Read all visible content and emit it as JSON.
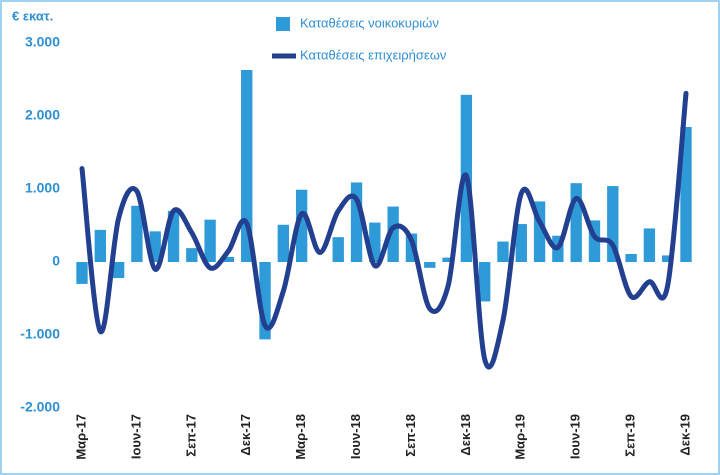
{
  "chart_data": {
    "type": "bar-line",
    "y_label": "€ εκατ.",
    "categories": [
      "Μαρ-17",
      null,
      null,
      "Ιουν-17",
      null,
      null,
      "Σεπ-17",
      null,
      null,
      "Δεκ-17",
      null,
      null,
      "Μαρ-18",
      null,
      null,
      "Ιουν-18",
      null,
      null,
      "Σεπ-18",
      null,
      null,
      "Δεκ-18",
      null,
      null,
      "Μαρ-19",
      null,
      null,
      "Ιουν-19",
      null,
      null,
      "Σεπ-19",
      null,
      null,
      "Δεκ-19"
    ],
    "series": [
      {
        "name": "Καταθέσεις νοικοκυριών",
        "type": "bar",
        "color": "#2e9ad8",
        "values": [
          -300,
          440,
          -220,
          770,
          420,
          700,
          190,
          580,
          70,
          2630,
          -1060,
          510,
          990,
          0,
          340,
          1090,
          540,
          760,
          390,
          -80,
          60,
          2290,
          -540,
          280,
          520,
          830,
          360,
          1080,
          570,
          1040,
          110,
          460,
          90,
          1850
        ]
      },
      {
        "name": "Καταθέσεις επιχειρήσεων",
        "type": "line",
        "color": "#233f8f",
        "values": [
          1280,
          -950,
          600,
          970,
          -100,
          700,
          400,
          -80,
          150,
          530,
          -870,
          -400,
          660,
          130,
          700,
          860,
          -50,
          470,
          300,
          -640,
          -330,
          1180,
          -1330,
          -800,
          940,
          550,
          200,
          870,
          350,
          230,
          -470,
          -270,
          -320,
          2310
        ]
      }
    ],
    "ylim": [
      -2000,
      3000
    ],
    "yticks": [
      {
        "value": -2000,
        "label": "-2.000"
      },
      {
        "value": -1000,
        "label": "-1.000"
      },
      0,
      {
        "value": 1000,
        "label": "1.000"
      },
      {
        "value": 2000,
        "label": "2.000"
      },
      {
        "value": 3000,
        "label": "3.000"
      }
    ],
    "grid": false
  }
}
